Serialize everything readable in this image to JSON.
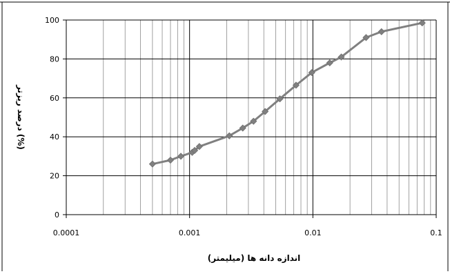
{
  "chart_data": {
    "type": "line",
    "title": "",
    "xlabel": "اندازه دانه ها (میلیمتر)",
    "ylabel": "درصد ریزتر (%)",
    "x_scale": "log",
    "xlim": [
      0.0001,
      0.1
    ],
    "ylim": [
      0,
      100
    ],
    "x_ticks": [
      0.0001,
      0.001,
      0.01,
      0.1
    ],
    "x_tick_labels": [
      "0.0001",
      "0.001",
      "0.01",
      "0.1"
    ],
    "y_ticks": [
      0,
      20,
      40,
      60,
      80,
      100
    ],
    "y_tick_labels": [
      "0",
      "20",
      "40",
      "60",
      "80",
      "100"
    ],
    "grid": {
      "x_major": true,
      "x_minor": true,
      "y_major": true
    },
    "legend": "none",
    "series_color": "#808080",
    "marker": "diamond",
    "series": [
      {
        "x": [
          0.0005,
          0.0007,
          0.00085,
          0.00105,
          0.0011,
          0.0012,
          0.0021,
          0.0027,
          0.0033,
          0.0041,
          0.0054,
          0.0073,
          0.0098,
          0.0137,
          0.017,
          0.027,
          0.036,
          0.077
        ],
        "y": [
          26,
          28,
          30,
          32,
          33,
          35,
          40.5,
          44.5,
          48,
          53,
          59.5,
          66.5,
          73,
          78,
          81,
          91,
          94,
          98.5
        ]
      }
    ]
  }
}
